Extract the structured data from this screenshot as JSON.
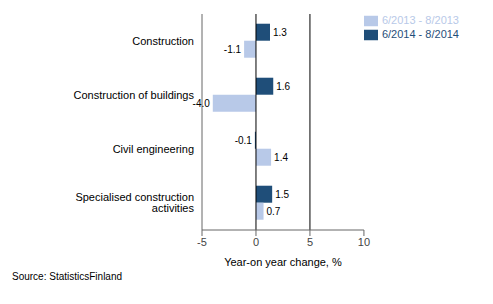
{
  "chart_data": {
    "type": "bar",
    "orientation": "horizontal",
    "categories": [
      "Construction",
      "Construction of buildings",
      "Civil engineering",
      "Specialised construction activities"
    ],
    "series": [
      {
        "name": "6/2014 - 8/2014",
        "color": "#1F4E79",
        "values": [
          1.3,
          1.6,
          -0.1,
          1.5
        ],
        "value_labels": [
          "1.3",
          "1.6",
          "-0.1",
          "1.5"
        ]
      },
      {
        "name": "6/2013 - 8/2013",
        "color": "#B8C9E8",
        "values": [
          -1.1,
          -4.0,
          1.4,
          0.7
        ],
        "value_labels": [
          "-1.1",
          "-4.0",
          "1.4",
          "0.7"
        ]
      }
    ],
    "xlabel": "Year-on year change, %",
    "xlim": [
      -5,
      10
    ],
    "xticks": [
      -5,
      0,
      5,
      10
    ],
    "vlines": [
      0,
      5
    ],
    "data_labels": true,
    "grid": false,
    "legend": "upper right",
    "annotations": [
      "Source: StatisticsFinland"
    ]
  }
}
